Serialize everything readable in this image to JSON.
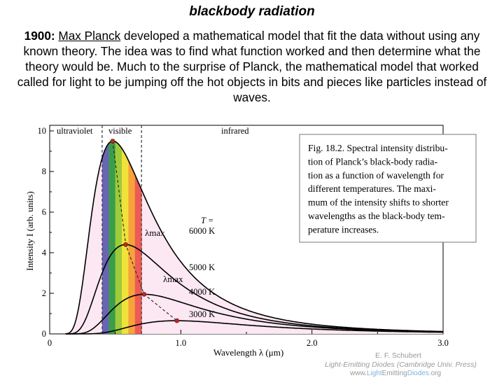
{
  "slide": {
    "title": "blackbody radiation",
    "para_year": "1900:",
    "para_name": "Max Planck",
    "para_rest": " developed a mathematical model that fit the data without using any known theory.  The idea was to find what function worked and then determine what the theory would be.  Much to the surprise of Planck, the mathematical model that worked called for light to be jumping off the hot objects in bits and pieces like particles instead of waves."
  },
  "caption": {
    "lines": [
      "Fig. 18.2. Spectral intensity distribu-",
      "tion of Planck’s black-body radia-",
      "tion as a function of wavelength for",
      "different temperatures. The maxi-",
      "mum of the intensity shifts to shorter",
      "wavelengths as the black-body tem-",
      "perature increases."
    ]
  },
  "credits": {
    "author": "E. F. Schubert",
    "book": "Light-Emitting Diodes (Cambridge Univ. Press)",
    "url_pre": "www.",
    "url_light": "Light",
    "url_emitting": "Emitting",
    "url_diodes": "Diodes",
    "url_post": ".org"
  },
  "colors": {
    "fill": "#fce8f2",
    "curve": "#000000",
    "peak": "#c0281e",
    "spectrum": [
      "#6a64b4",
      "#3a9d4a",
      "#9ecb3b",
      "#f0e23a",
      "#f5a33a",
      "#ee5a56"
    ]
  },
  "chart_data": {
    "type": "line",
    "xlabel": "Wavelength  λ  (μm)",
    "ylabel": "Intensity  I  (arb. units)",
    "xlim": [
      0,
      3.0
    ],
    "ylim": [
      0,
      10
    ],
    "x_ticks": [
      "0",
      "1.0",
      "2.0",
      "3.0"
    ],
    "y_ticks": [
      "0",
      "2",
      "4",
      "6",
      "8",
      "10"
    ],
    "regions": [
      "ultraviolet",
      "visible",
      "infrared"
    ],
    "visible_range_um": [
      0.4,
      0.7
    ],
    "temp_prefix": "T =",
    "lambda_max_label": "λmax",
    "series": [
      {
        "name": "6000 K",
        "peak_x": 0.48,
        "peak_y": 9.5
      },
      {
        "name": "5000 K",
        "peak_x": 0.58,
        "peak_y": 4.4
      },
      {
        "name": "4000 K",
        "peak_x": 0.72,
        "peak_y": 1.95
      },
      {
        "name": "3000 K",
        "peak_x": 0.97,
        "peak_y": 0.65
      }
    ]
  }
}
